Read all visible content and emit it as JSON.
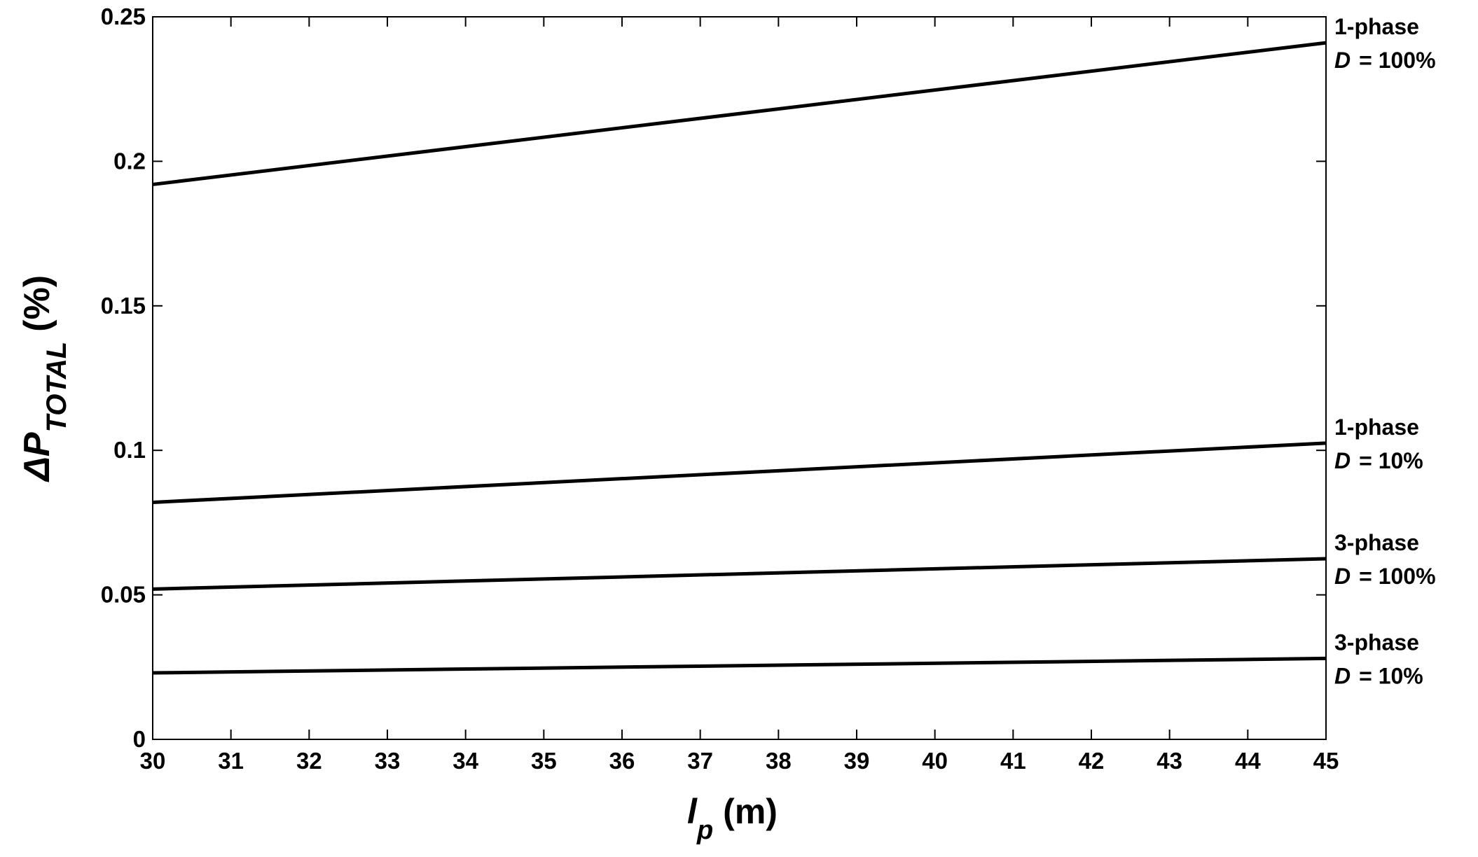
{
  "chart_data": {
    "type": "line",
    "xlabel": "l",
    "xlabel_sub": "p",
    "xlabel_unit": "(m)",
    "ylabel": "ΔP",
    "ylabel_sub": "TOTAL",
    "ylabel_unit": "(%)",
    "xlim": [
      30,
      45
    ],
    "xticks": [
      30,
      31,
      32,
      33,
      34,
      35,
      36,
      37,
      38,
      39,
      40,
      41,
      42,
      43,
      44,
      45
    ],
    "ylim": [
      0,
      0.25
    ],
    "yticks": [
      0,
      0.05,
      0.1,
      0.15,
      0.2,
      0.25
    ],
    "grid": false,
    "series": [
      {
        "name": "1-phase",
        "duty_symbol": "D",
        "duty": "= 100%",
        "color": "#000000",
        "x": [
          30,
          45
        ],
        "values": [
          0.192,
          0.241
        ]
      },
      {
        "name": "1-phase",
        "duty_symbol": "D",
        "duty": "= 10%",
        "color": "#000000",
        "x": [
          30,
          45
        ],
        "values": [
          0.082,
          0.1025
        ]
      },
      {
        "name": "3-phase",
        "duty_symbol": "D",
        "duty": "= 100%",
        "color": "#000000",
        "x": [
          30,
          45
        ],
        "values": [
          0.052,
          0.0625
        ]
      },
      {
        "name": "3-phase",
        "duty_symbol": "D",
        "duty": "= 10%",
        "color": "#000000",
        "x": [
          30,
          45
        ],
        "values": [
          0.023,
          0.028
        ]
      }
    ]
  }
}
